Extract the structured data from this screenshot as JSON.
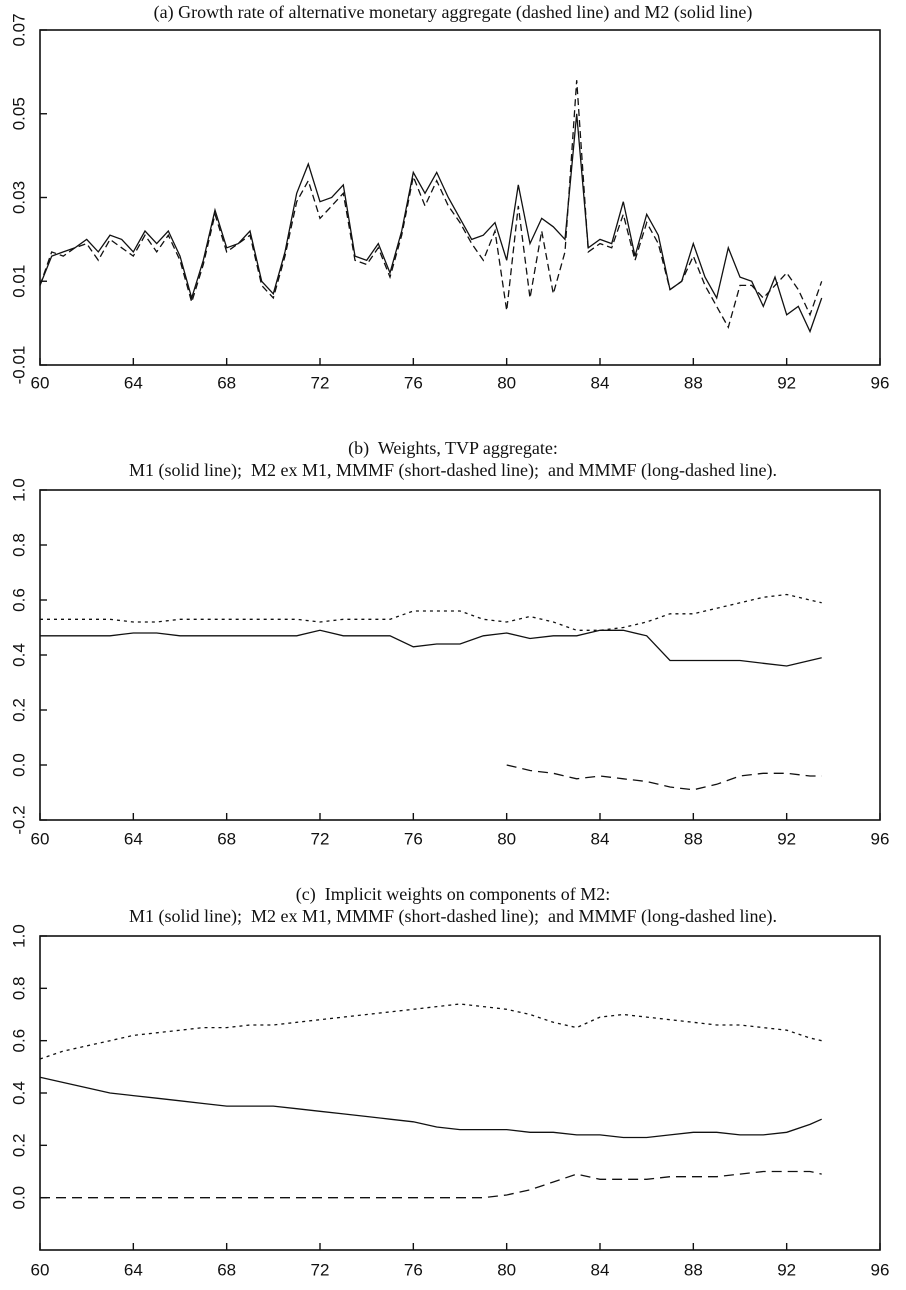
{
  "chart_data": [
    {
      "type": "line",
      "title": "(a) Growth rate of alternative monetary aggregate (dashed line) and M2 (solid line)",
      "x": [
        60,
        60.5,
        61,
        61.5,
        62,
        62.5,
        63,
        63.5,
        64,
        64.5,
        65,
        65.5,
        66,
        66.5,
        67,
        67.5,
        68,
        68.5,
        69,
        69.5,
        70,
        70.5,
        71,
        71.5,
        72,
        72.5,
        73,
        73.5,
        74,
        74.5,
        75,
        75.5,
        76,
        76.5,
        77,
        77.5,
        78,
        78.5,
        79,
        79.5,
        80,
        80.5,
        81,
        81.5,
        82,
        82.5,
        83,
        83.5,
        84,
        84.5,
        85,
        85.5,
        86,
        86.5,
        87,
        87.5,
        88,
        88.5,
        89,
        89.5,
        90,
        90.5,
        91,
        91.5,
        92,
        92.5,
        93,
        93.5
      ],
      "series": [
        {
          "color": "#111111",
          "linestyle": "dashed",
          "values": [
            0.009,
            0.017,
            0.016,
            0.018,
            0.019,
            0.015,
            0.02,
            0.018,
            0.016,
            0.021,
            0.017,
            0.021,
            0.015,
            0.005,
            0.014,
            0.026,
            0.017,
            0.019,
            0.021,
            0.009,
            0.006,
            0.016,
            0.029,
            0.034,
            0.025,
            0.028,
            0.031,
            0.015,
            0.014,
            0.018,
            0.011,
            0.021,
            0.035,
            0.028,
            0.034,
            0.028,
            0.024,
            0.019,
            0.015,
            0.022,
            0.003,
            0.028,
            0.006,
            0.022,
            0.007,
            0.017,
            0.058,
            0.017,
            0.019,
            0.018,
            0.026,
            0.015,
            0.024,
            0.019,
            0.008,
            0.01,
            0.016,
            0.009,
            0.004,
            -0.001,
            0.009,
            0.009,
            0.006,
            0.009,
            0.012,
            0.008,
            0.002,
            0.01
          ]
        },
        {
          "color": "#111111",
          "linestyle": "solid",
          "values": [
            0.009,
            0.016,
            0.017,
            0.018,
            0.02,
            0.017,
            0.021,
            0.02,
            0.017,
            0.022,
            0.019,
            0.022,
            0.016,
            0.006,
            0.015,
            0.027,
            0.018,
            0.019,
            0.022,
            0.01,
            0.007,
            0.017,
            0.031,
            0.038,
            0.029,
            0.03,
            0.033,
            0.016,
            0.015,
            0.019,
            0.012,
            0.022,
            0.036,
            0.031,
            0.036,
            0.03,
            0.025,
            0.02,
            0.021,
            0.024,
            0.015,
            0.033,
            0.019,
            0.025,
            0.023,
            0.02,
            0.05,
            0.018,
            0.02,
            0.019,
            0.029,
            0.016,
            0.026,
            0.021,
            0.008,
            0.01,
            0.019,
            0.011,
            0.006,
            0.018,
            0.011,
            0.01,
            0.004,
            0.011,
            0.002,
            0.004,
            -0.002,
            0.006
          ]
        }
      ],
      "xlim": [
        60,
        96
      ],
      "xticks": [
        60,
        64,
        68,
        72,
        76,
        80,
        84,
        88,
        92,
        96
      ],
      "ylim": [
        -0.01,
        0.07
      ],
      "yticks": [
        -0.01,
        0.01,
        0.03,
        0.05,
        0.07
      ]
    },
    {
      "type": "line",
      "title": "(b)  Weights, TVP aggregate:",
      "subtitle": "M1 (solid line);  M2 ex M1, MMMF (short-dashed line);  and MMMF (long-dashed line).",
      "x": [
        60,
        61,
        62,
        63,
        64,
        65,
        66,
        67,
        68,
        69,
        70,
        71,
        72,
        73,
        74,
        75,
        76,
        77,
        78,
        79,
        80,
        81,
        82,
        83,
        84,
        85,
        86,
        87,
        88,
        89,
        90,
        91,
        92,
        93,
        93.5
      ],
      "series": [
        {
          "color": "#111111",
          "linestyle": "solid",
          "values": [
            0.47,
            0.47,
            0.47,
            0.47,
            0.48,
            0.48,
            0.47,
            0.47,
            0.47,
            0.47,
            0.47,
            0.47,
            0.49,
            0.47,
            0.47,
            0.47,
            0.43,
            0.44,
            0.44,
            0.47,
            0.48,
            0.46,
            0.47,
            0.47,
            0.49,
            0.49,
            0.47,
            0.38,
            0.38,
            0.38,
            0.38,
            0.37,
            0.36,
            0.38,
            0.39
          ]
        },
        {
          "color": "#111111",
          "linestyle": "short-dashed",
          "values": [
            0.53,
            0.53,
            0.53,
            0.53,
            0.52,
            0.52,
            0.53,
            0.53,
            0.53,
            0.53,
            0.53,
            0.53,
            0.52,
            0.53,
            0.53,
            0.53,
            0.56,
            0.56,
            0.56,
            0.53,
            0.52,
            0.54,
            0.52,
            0.49,
            0.49,
            0.5,
            0.52,
            0.55,
            0.55,
            0.57,
            0.59,
            0.61,
            0.62,
            0.6,
            0.59
          ]
        },
        {
          "color": "#111111",
          "linestyle": "long-dashed",
          "values": [
            null,
            null,
            null,
            null,
            null,
            null,
            null,
            null,
            null,
            null,
            null,
            null,
            null,
            null,
            null,
            null,
            null,
            null,
            null,
            null,
            0.0,
            -0.02,
            -0.03,
            -0.05,
            -0.04,
            -0.05,
            -0.06,
            -0.08,
            -0.09,
            -0.07,
            -0.04,
            -0.03,
            -0.03,
            -0.04,
            -0.04
          ]
        }
      ],
      "xlim": [
        60,
        96
      ],
      "xticks": [
        60,
        64,
        68,
        72,
        76,
        80,
        84,
        88,
        92,
        96
      ],
      "ylim": [
        -0.2,
        1.0
      ],
      "yticks": [
        -0.2,
        {
          "value": 0,
          "label": "0.0"
        },
        0.2,
        0.4,
        0.6,
        0.8,
        {
          "value": 1,
          "label": "1.0"
        }
      ]
    },
    {
      "type": "line",
      "title": "(c)  Implicit weights on components of M2:",
      "subtitle": "M1 (solid line);  M2 ex M1, MMMF (short-dashed line);  and MMMF (long-dashed line).",
      "x": [
        60,
        61,
        62,
        63,
        64,
        65,
        66,
        67,
        68,
        69,
        70,
        71,
        72,
        73,
        74,
        75,
        76,
        77,
        78,
        79,
        80,
        81,
        82,
        83,
        84,
        85,
        86,
        87,
        88,
        89,
        90,
        91,
        92,
        93,
        93.5
      ],
      "series": [
        {
          "color": "#111111",
          "linestyle": "solid",
          "values": [
            0.46,
            0.44,
            0.42,
            0.4,
            0.39,
            0.38,
            0.37,
            0.36,
            0.35,
            0.35,
            0.35,
            0.34,
            0.33,
            0.32,
            0.31,
            0.3,
            0.29,
            0.27,
            0.26,
            0.26,
            0.26,
            0.25,
            0.25,
            0.24,
            0.24,
            0.23,
            0.23,
            0.24,
            0.25,
            0.25,
            0.24,
            0.24,
            0.25,
            0.28,
            0.3
          ]
        },
        {
          "color": "#111111",
          "linestyle": "short-dashed",
          "values": [
            0.53,
            0.56,
            0.58,
            0.6,
            0.62,
            0.63,
            0.64,
            0.65,
            0.65,
            0.66,
            0.66,
            0.67,
            0.68,
            0.69,
            0.7,
            0.71,
            0.72,
            0.73,
            0.74,
            0.73,
            0.72,
            0.7,
            0.67,
            0.65,
            0.69,
            0.7,
            0.69,
            0.68,
            0.67,
            0.66,
            0.66,
            0.65,
            0.64,
            0.61,
            0.6
          ]
        },
        {
          "color": "#111111",
          "linestyle": "long-dashed",
          "values": [
            0.0,
            0.0,
            0.0,
            0.0,
            0.0,
            0.0,
            0.0,
            0.0,
            0.0,
            0.0,
            0.0,
            0.0,
            0.0,
            0.0,
            0.0,
            0.0,
            0.0,
            0.0,
            0.0,
            0.0,
            0.01,
            0.03,
            0.06,
            0.09,
            0.07,
            0.07,
            0.07,
            0.08,
            0.08,
            0.08,
            0.09,
            0.1,
            0.1,
            0.1,
            0.09
          ]
        }
      ],
      "xlim": [
        60,
        96
      ],
      "xticks": [
        60,
        64,
        68,
        72,
        76,
        80,
        84,
        88,
        92,
        96
      ],
      "ylim": [
        -0.2,
        1.0
      ],
      "yticks": [
        {
          "value": 0,
          "label": "0.0"
        },
        0.2,
        0.4,
        0.6,
        0.8,
        {
          "value": 1,
          "label": "1.0"
        }
      ]
    }
  ]
}
